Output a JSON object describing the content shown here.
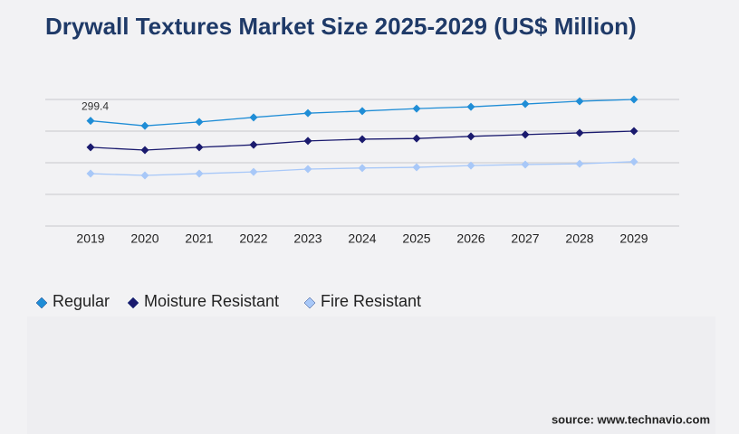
{
  "chart_data": {
    "type": "line",
    "title": "Drywall Textures Market Size 2025-2029 (US$ Million)",
    "categories": [
      "2019",
      "2020",
      "2021",
      "2022",
      "2023",
      "2024",
      "2025",
      "2026",
      "2027",
      "2028",
      "2029"
    ],
    "series": [
      {
        "name": "Regular",
        "color": "#1f8dd6",
        "values": [
          299.4,
          285,
          296,
          309,
          321,
          327,
          334,
          339,
          347,
          355,
          360
        ]
      },
      {
        "name": "Moisture Resistant",
        "color": "#1a1a6e",
        "values": [
          224,
          216,
          224,
          231,
          242,
          247,
          249,
          255,
          260,
          265,
          270
        ]
      },
      {
        "name": "Fire Resistant",
        "color": "#a8c8f8",
        "values": [
          149,
          144,
          149,
          154,
          162,
          165,
          167,
          172,
          175,
          177,
          183
        ]
      }
    ],
    "ylim": [
      0,
      360
    ],
    "yticks": [
      0,
      90,
      180,
      270,
      360
    ],
    "grid": true
  },
  "source": "source: www.technavio.com"
}
